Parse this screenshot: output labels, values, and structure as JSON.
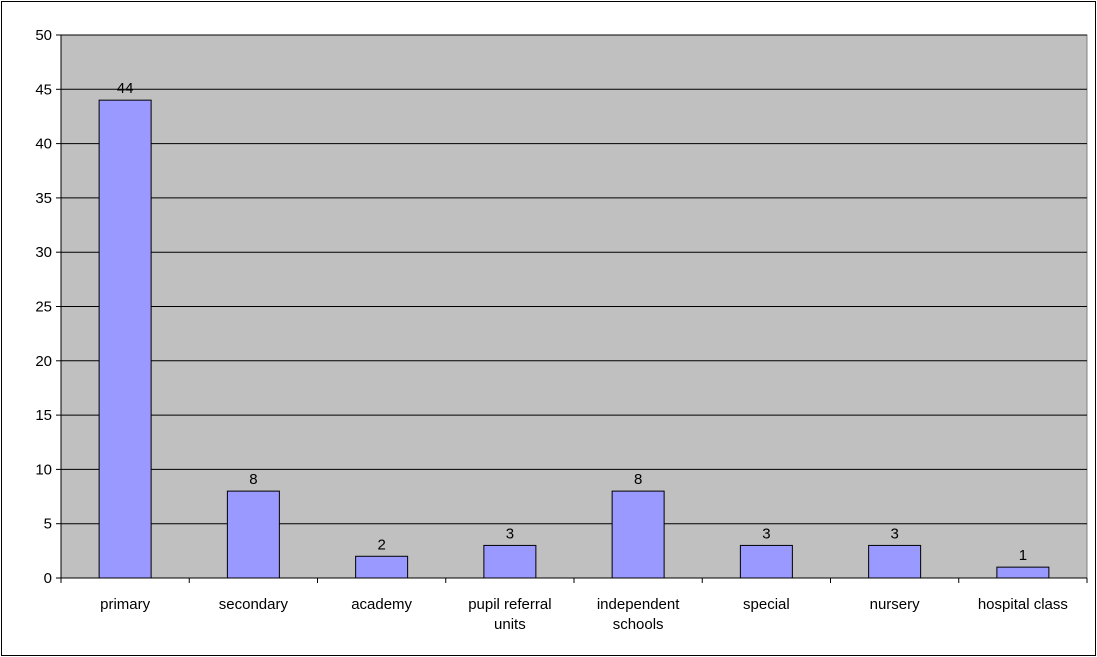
{
  "chart_data": {
    "type": "bar",
    "categories": [
      [
        "primary"
      ],
      [
        "secondary"
      ],
      [
        "academy"
      ],
      [
        "pupil referral",
        "units"
      ],
      [
        "independent",
        "schools"
      ],
      [
        "special"
      ],
      [
        "nursery"
      ],
      [
        "hospital class"
      ]
    ],
    "values": [
      44,
      8,
      2,
      3,
      8,
      3,
      3,
      1
    ],
    "ylim": [
      0,
      50
    ],
    "yticks": [
      0,
      5,
      10,
      15,
      20,
      25,
      30,
      35,
      40,
      45,
      50
    ],
    "grid": true,
    "legend": "none",
    "data_labels": true,
    "title": "",
    "xlabel": "",
    "ylabel": ""
  },
  "colors": {
    "bar_fill": "#9999ff",
    "bar_stroke": "#000000",
    "plot_background": "#c0c0c0",
    "gridline": "#000000"
  }
}
